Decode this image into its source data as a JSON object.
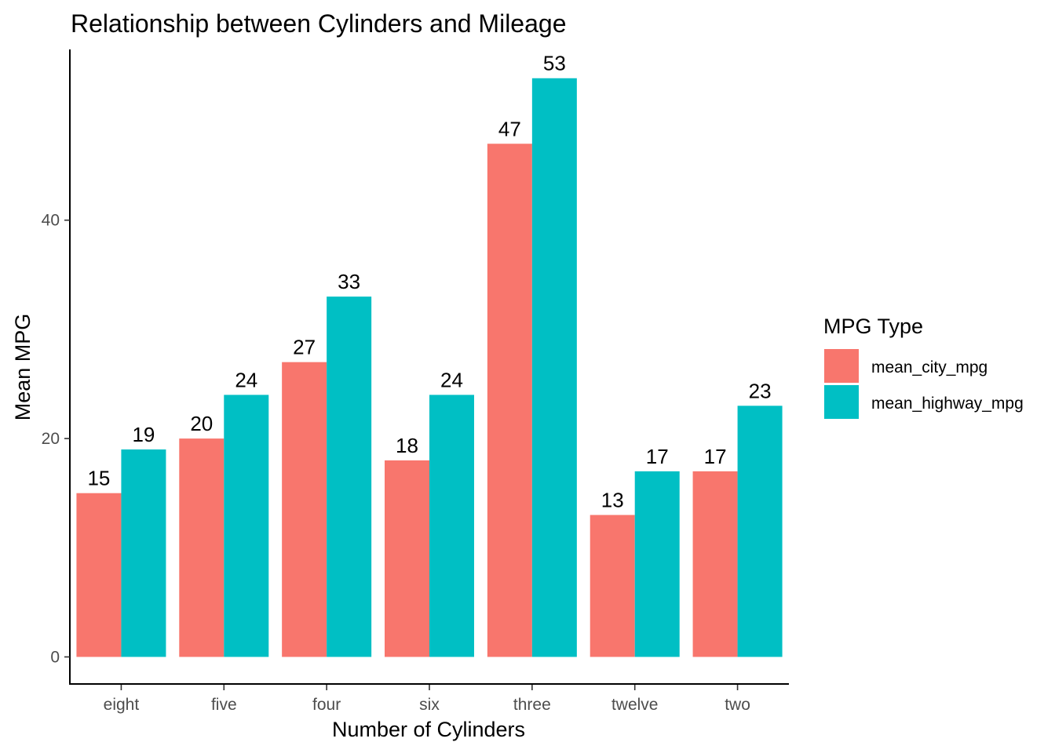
{
  "chart_data": {
    "type": "bar",
    "title": "Relationship between Cylinders and Mileage",
    "xlabel": "Number of Cylinders",
    "ylabel": "Mean MPG",
    "categories": [
      "eight",
      "five",
      "four",
      "six",
      "three",
      "twelve",
      "two"
    ],
    "series": [
      {
        "name": "mean_city_mpg",
        "values": [
          15,
          20,
          27,
          18,
          47,
          13,
          17
        ],
        "color": "#F8766D"
      },
      {
        "name": "mean_highway_mpg",
        "values": [
          19,
          24,
          33,
          24,
          53,
          17,
          23
        ],
        "color": "#00BFC4"
      }
    ],
    "value_labels": [
      [
        "15",
        "20",
        "27",
        "18",
        "47",
        "13",
        "17"
      ],
      [
        "19",
        "24",
        "33",
        "24",
        "53",
        "17",
        "23"
      ]
    ],
    "yticks": [
      0,
      20,
      40
    ],
    "ytick_labels": [
      "0",
      "20",
      "40"
    ],
    "ylim": [
      0,
      55
    ],
    "grid": false,
    "legend": {
      "title": "MPG Type",
      "position": "right"
    }
  }
}
